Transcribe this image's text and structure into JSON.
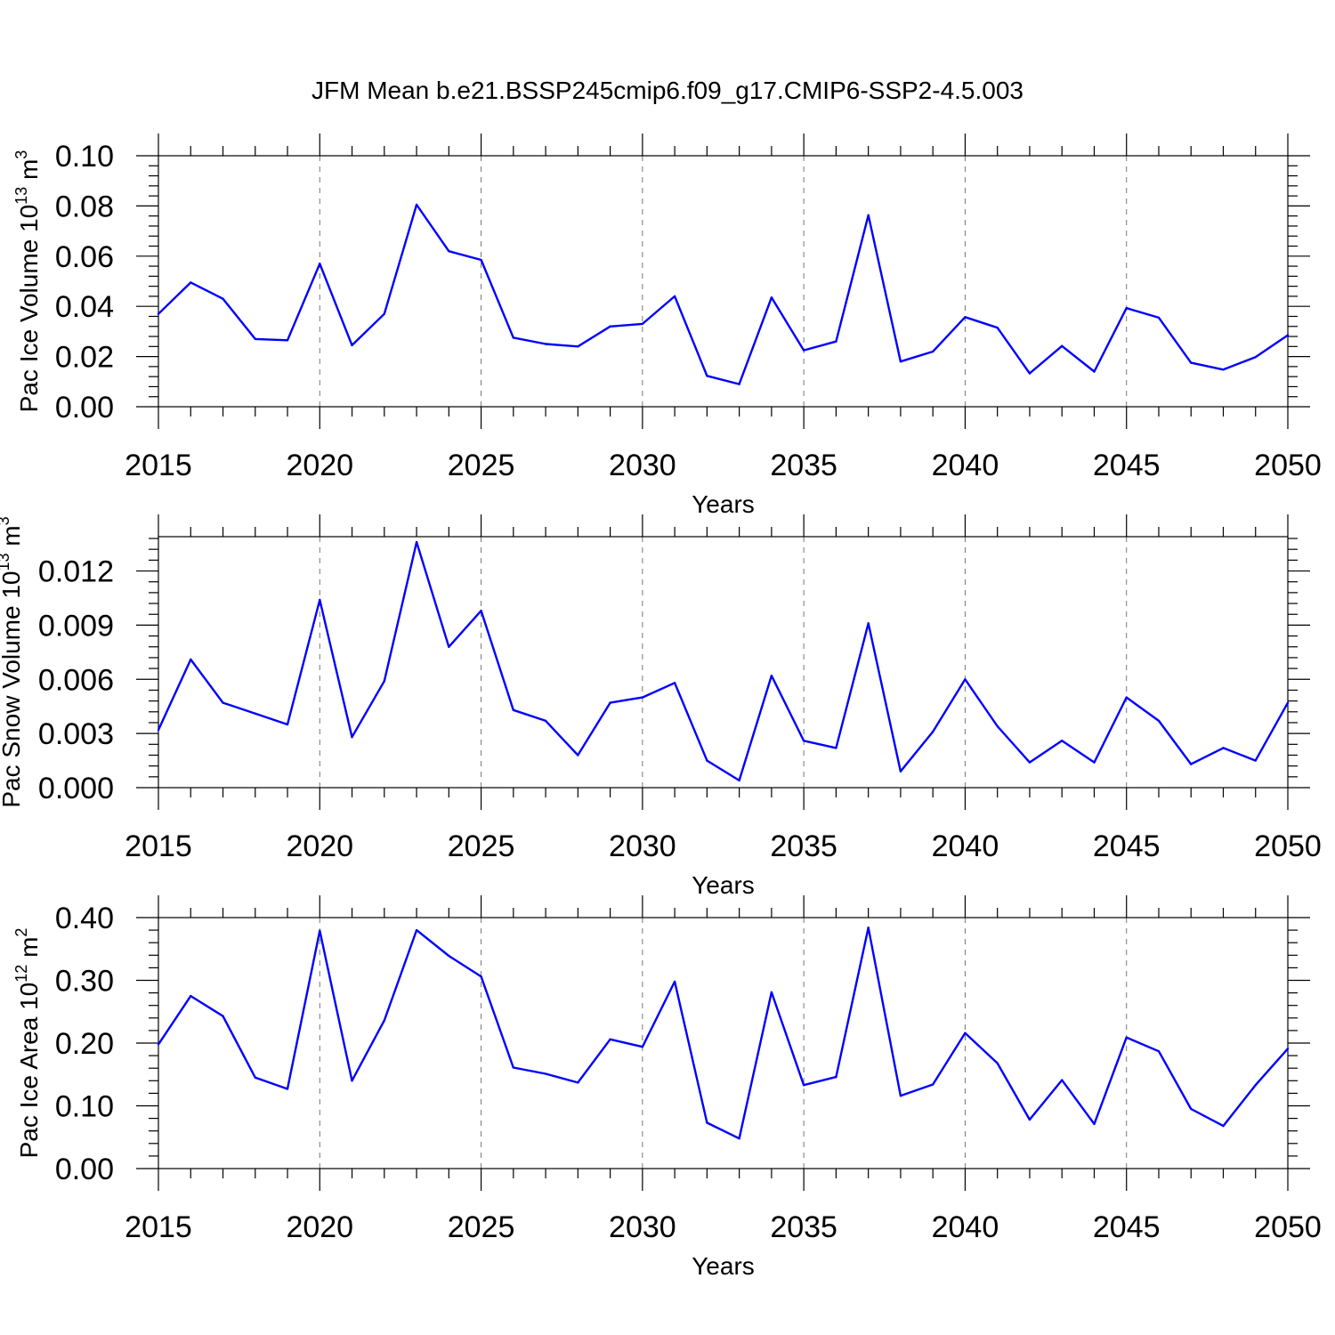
{
  "figure": {
    "title": "JFM Mean b.e21.BSSP245cmip6.f09_g17.CMIP6-SSP2-4.5.003"
  },
  "colors": {
    "line": "#0000ff",
    "grid": "#777777",
    "axis": "#000000"
  },
  "chart_data": [
    {
      "type": "line",
      "xlabel": "Years",
      "ylabel": "Pac Ice Volume 10",
      "ylabel_exponent": "13",
      "ylabel_unit": "m",
      "ylabel_unit_exponent": "3",
      "xlim": [
        2015,
        2050
      ],
      "ylim": [
        0.0,
        0.1
      ],
      "x_ticks": [
        2015,
        2020,
        2025,
        2030,
        2035,
        2040,
        2045,
        2050
      ],
      "x_tick_labels": [
        "2015",
        "2020",
        "2025",
        "2030",
        "2035",
        "2040",
        "2045",
        "2050"
      ],
      "y_ticks": [
        0.0,
        0.02,
        0.04,
        0.06,
        0.08,
        0.1
      ],
      "y_tick_labels": [
        "0.00",
        "0.02",
        "0.04",
        "0.06",
        "0.08",
        "0.10"
      ],
      "grid": "vertical dashed at major x ticks",
      "x": [
        2015,
        2016,
        2017,
        2018,
        2019,
        2020,
        2021,
        2022,
        2023,
        2024,
        2025,
        2026,
        2027,
        2028,
        2029,
        2030,
        2031,
        2032,
        2033,
        2034,
        2035,
        2036,
        2037,
        2038,
        2039,
        2040,
        2041,
        2042,
        2043,
        2044,
        2045,
        2046,
        2047,
        2048,
        2049,
        2050
      ],
      "values": [
        0.037,
        0.0495,
        0.043,
        0.027,
        0.0265,
        0.057,
        0.0245,
        0.037,
        0.0805,
        0.062,
        0.0585,
        0.0275,
        0.025,
        0.024,
        0.032,
        0.033,
        0.044,
        0.0123,
        0.009,
        0.0435,
        0.0225,
        0.026,
        0.0763,
        0.018,
        0.022,
        0.0357,
        0.0315,
        0.0133,
        0.0242,
        0.014,
        0.0393,
        0.0355,
        0.0175,
        0.0148,
        0.0198,
        0.0285
      ]
    },
    {
      "type": "line",
      "xlabel": "Years",
      "ylabel": "Pac Snow Volume 10",
      "ylabel_exponent": "13",
      "ylabel_unit": "m",
      "ylabel_unit_exponent": "3",
      "xlim": [
        2015,
        2050
      ],
      "ylim": [
        0.0,
        0.0139
      ],
      "x_ticks": [
        2015,
        2020,
        2025,
        2030,
        2035,
        2040,
        2045,
        2050
      ],
      "x_tick_labels": [
        "2015",
        "2020",
        "2025",
        "2030",
        "2035",
        "2040",
        "2045",
        "2050"
      ],
      "y_ticks": [
        0.0,
        0.003,
        0.006,
        0.009,
        0.012
      ],
      "y_tick_labels": [
        "0.000",
        "0.003",
        "0.006",
        "0.009",
        "0.012"
      ],
      "grid": "vertical dashed at major x ticks",
      "x": [
        2015,
        2016,
        2017,
        2018,
        2019,
        2020,
        2021,
        2022,
        2023,
        2024,
        2025,
        2026,
        2027,
        2028,
        2029,
        2030,
        2031,
        2032,
        2033,
        2034,
        2035,
        2036,
        2037,
        2038,
        2039,
        2040,
        2041,
        2042,
        2043,
        2044,
        2045,
        2046,
        2047,
        2048,
        2049,
        2050
      ],
      "values": [
        0.0032,
        0.0071,
        0.0047,
        0.0041,
        0.0035,
        0.0104,
        0.0028,
        0.0059,
        0.0136,
        0.0078,
        0.0098,
        0.0043,
        0.0037,
        0.0018,
        0.0047,
        0.005,
        0.0058,
        0.0015,
        0.0004,
        0.0062,
        0.0026,
        0.0022,
        0.0091,
        0.0009,
        0.0031,
        0.006,
        0.0034,
        0.0014,
        0.0026,
        0.0014,
        0.005,
        0.0037,
        0.0013,
        0.0022,
        0.0015,
        0.0047
      ]
    },
    {
      "type": "line",
      "xlabel": "Years",
      "ylabel": "Pac Ice Area 10",
      "ylabel_exponent": "12",
      "ylabel_unit": "m",
      "ylabel_unit_exponent": "2",
      "xlim": [
        2015,
        2050
      ],
      "ylim": [
        0.0,
        0.4
      ],
      "x_ticks": [
        2015,
        2020,
        2025,
        2030,
        2035,
        2040,
        2045,
        2050
      ],
      "x_tick_labels": [
        "2015",
        "2020",
        "2025",
        "2030",
        "2035",
        "2040",
        "2045",
        "2050"
      ],
      "y_ticks": [
        0.0,
        0.1,
        0.2,
        0.3,
        0.4
      ],
      "y_tick_labels": [
        "0.00",
        "0.10",
        "0.20",
        "0.30",
        "0.40"
      ],
      "grid": "vertical dashed at major x ticks",
      "x": [
        2015,
        2016,
        2017,
        2018,
        2019,
        2020,
        2021,
        2022,
        2023,
        2024,
        2025,
        2026,
        2027,
        2028,
        2029,
        2030,
        2031,
        2032,
        2033,
        2034,
        2035,
        2036,
        2037,
        2038,
        2039,
        2040,
        2041,
        2042,
        2043,
        2044,
        2045,
        2046,
        2047,
        2048,
        2049,
        2050
      ],
      "values": [
        0.198,
        0.275,
        0.243,
        0.145,
        0.127,
        0.379,
        0.14,
        0.236,
        0.38,
        0.339,
        0.306,
        0.161,
        0.151,
        0.137,
        0.206,
        0.194,
        0.298,
        0.073,
        0.048,
        0.281,
        0.133,
        0.146,
        0.384,
        0.116,
        0.134,
        0.216,
        0.168,
        0.078,
        0.141,
        0.071,
        0.209,
        0.187,
        0.095,
        0.068,
        0.133,
        0.191
      ]
    }
  ]
}
